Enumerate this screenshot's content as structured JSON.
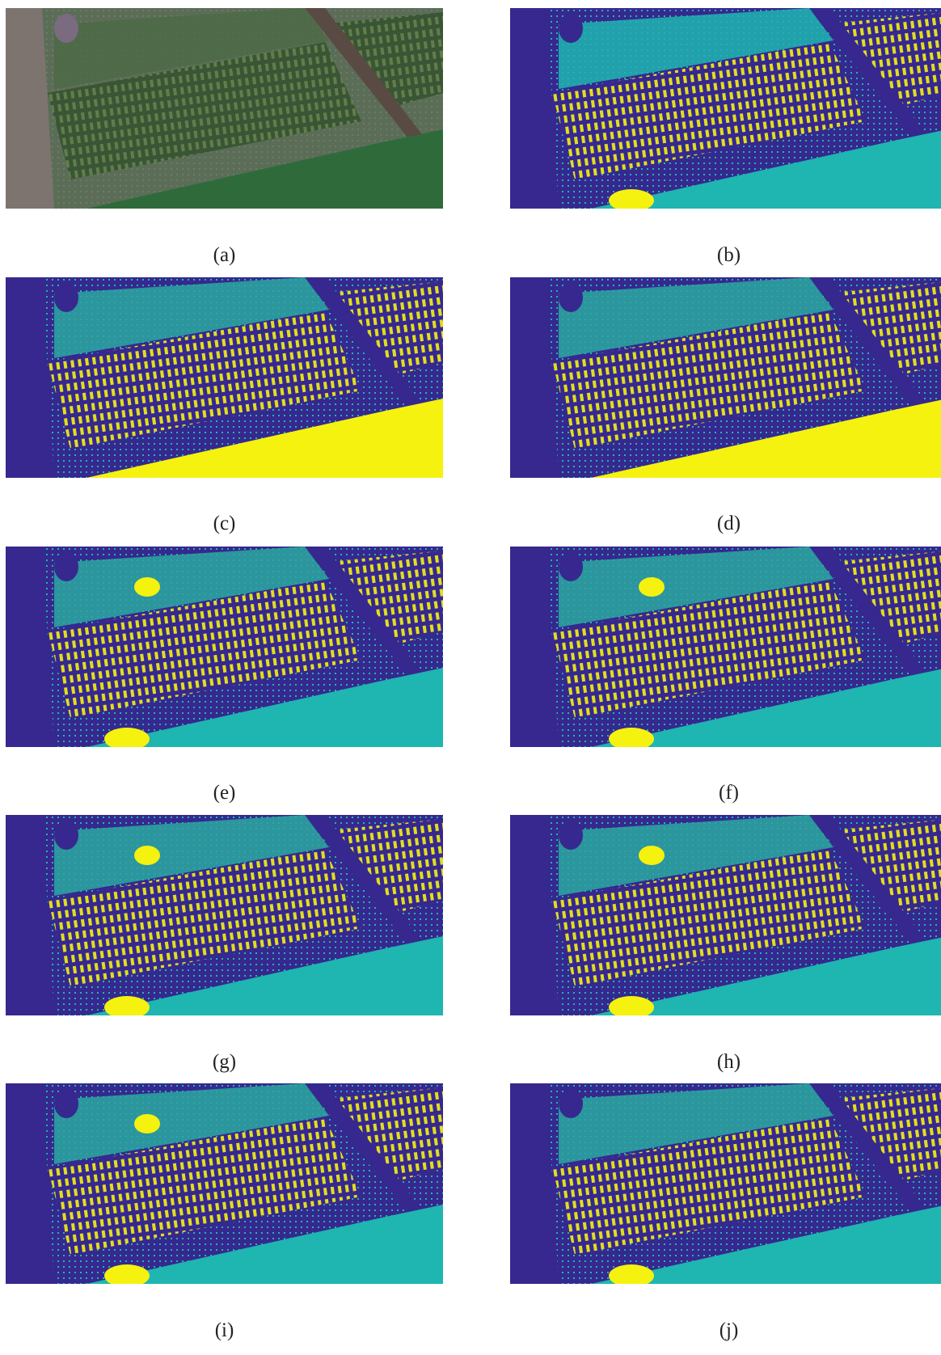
{
  "labels": [
    "(a)",
    "(b)",
    "(c)",
    "(d)",
    "(e)",
    "(f)",
    "(g)",
    "(h)",
    "(i)",
    "(j)"
  ]
}
